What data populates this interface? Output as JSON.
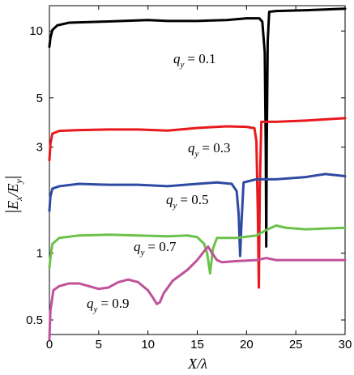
{
  "chart_data": {
    "type": "line",
    "title": "",
    "xlabel": "X/λ",
    "ylabel": "|E_x/E_y|",
    "x_ticks": [
      "0",
      "5",
      "10",
      "15",
      "20",
      "25",
      "30"
    ],
    "y_ticks": [
      "0.5",
      "1",
      "3",
      "5",
      "10"
    ],
    "xlim": [
      0,
      30
    ],
    "ylim": [
      0.43,
      13
    ],
    "y_scale": "log",
    "grid": false,
    "legend": "none",
    "series": [
      {
        "label_prefix": "q",
        "label_sub": "y",
        "label_value": "= 0.1",
        "color": "#000000",
        "points": [
          [
            0,
            8.5
          ],
          [
            0.1,
            9.3
          ],
          [
            0.3,
            10.1
          ],
          [
            0.8,
            10.6
          ],
          [
            2,
            10.9
          ],
          [
            5,
            11.0
          ],
          [
            10,
            11.2
          ],
          [
            12,
            11.1
          ],
          [
            15,
            11.1
          ],
          [
            18,
            11.2
          ],
          [
            20,
            11.4
          ],
          [
            21.3,
            11.4
          ],
          [
            21.6,
            11.0
          ],
          [
            21.85,
            8
          ],
          [
            21.95,
            3
          ],
          [
            22.0,
            1.07
          ],
          [
            22.05,
            3
          ],
          [
            22.15,
            9
          ],
          [
            22.3,
            12.2
          ],
          [
            23,
            12.3
          ],
          [
            26,
            12.4
          ],
          [
            30,
            12.6
          ]
        ]
      },
      {
        "label_prefix": "q",
        "label_sub": "y",
        "label_value": "= 0.3",
        "color": "#e8191d",
        "points": [
          [
            0,
            2.62
          ],
          [
            0.1,
            3.1
          ],
          [
            0.3,
            3.45
          ],
          [
            1,
            3.55
          ],
          [
            3,
            3.58
          ],
          [
            6,
            3.6
          ],
          [
            9,
            3.6
          ],
          [
            12,
            3.56
          ],
          [
            15,
            3.66
          ],
          [
            18,
            3.72
          ],
          [
            20,
            3.7
          ],
          [
            20.8,
            3.65
          ],
          [
            21.0,
            3.2
          ],
          [
            21.15,
            1.5
          ],
          [
            21.25,
            0.7
          ],
          [
            21.35,
            2
          ],
          [
            21.5,
            3.9
          ],
          [
            23,
            3.9
          ],
          [
            26,
            3.95
          ],
          [
            30,
            4.05
          ]
        ]
      },
      {
        "label_prefix": "q",
        "label_sub": "y",
        "label_value": "= 0.5",
        "color": "#2e4aa2",
        "points": [
          [
            0,
            1.55
          ],
          [
            0.1,
            1.8
          ],
          [
            0.3,
            1.95
          ],
          [
            1,
            2.0
          ],
          [
            3,
            2.05
          ],
          [
            6,
            2.03
          ],
          [
            9,
            2.03
          ],
          [
            12,
            2.0
          ],
          [
            15,
            2.05
          ],
          [
            17,
            2.08
          ],
          [
            18.5,
            2.05
          ],
          [
            19.0,
            1.9
          ],
          [
            19.2,
            1.5
          ],
          [
            19.35,
            0.97
          ],
          [
            19.5,
            1.4
          ],
          [
            19.7,
            2.08
          ],
          [
            21,
            2.15
          ],
          [
            23,
            2.15
          ],
          [
            26,
            2.2
          ],
          [
            28,
            2.27
          ],
          [
            30,
            2.22
          ]
        ]
      },
      {
        "label_prefix": "q",
        "label_sub": "y",
        "label_value": "= 0.7",
        "color": "#6cc24a",
        "points": [
          [
            0,
            0.86
          ],
          [
            0.1,
            0.95
          ],
          [
            0.3,
            1.1
          ],
          [
            1,
            1.17
          ],
          [
            3,
            1.2
          ],
          [
            6,
            1.21
          ],
          [
            9,
            1.2
          ],
          [
            12,
            1.19
          ],
          [
            14,
            1.2
          ],
          [
            15,
            1.18
          ],
          [
            15.7,
            1.1
          ],
          [
            16.0,
            1.0
          ],
          [
            16.3,
            0.81
          ],
          [
            16.6,
            1.05
          ],
          [
            17,
            1.17
          ],
          [
            19,
            1.17
          ],
          [
            21,
            1.2
          ],
          [
            22,
            1.27
          ],
          [
            23,
            1.33
          ],
          [
            24,
            1.3
          ],
          [
            26,
            1.28
          ],
          [
            28,
            1.29
          ],
          [
            30,
            1.3
          ]
        ]
      },
      {
        "label_prefix": "q",
        "label_sub": "y",
        "label_value": "= 0.9",
        "color": "#c0519a",
        "points": [
          [
            0,
            0.41
          ],
          [
            0.1,
            0.55
          ],
          [
            0.4,
            0.68
          ],
          [
            1,
            0.71
          ],
          [
            2,
            0.73
          ],
          [
            3,
            0.73
          ],
          [
            4,
            0.71
          ],
          [
            5,
            0.69
          ],
          [
            6,
            0.7
          ],
          [
            7,
            0.74
          ],
          [
            8,
            0.76
          ],
          [
            9,
            0.74
          ],
          [
            10,
            0.68
          ],
          [
            10.5,
            0.63
          ],
          [
            10.9,
            0.59
          ],
          [
            11.2,
            0.6
          ],
          [
            11.6,
            0.66
          ],
          [
            12.5,
            0.75
          ],
          [
            14,
            0.84
          ],
          [
            15,
            0.93
          ],
          [
            15.7,
            1.02
          ],
          [
            16.1,
            1.07
          ],
          [
            16.5,
            1.0
          ],
          [
            17,
            0.93
          ],
          [
            17.5,
            0.91
          ],
          [
            19,
            0.92
          ],
          [
            21,
            0.93
          ],
          [
            22,
            0.95
          ],
          [
            23,
            0.93
          ],
          [
            26,
            0.93
          ],
          [
            30,
            0.93
          ]
        ]
      }
    ]
  }
}
